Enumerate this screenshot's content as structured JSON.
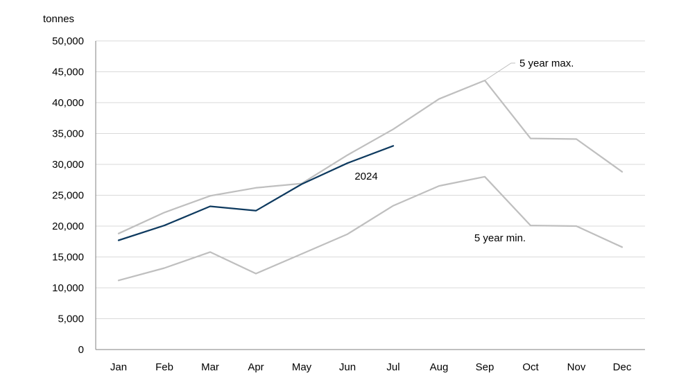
{
  "chart_data": {
    "type": "line",
    "title": "",
    "xlabel": "",
    "ylabel": "tonnes",
    "categories": [
      "Jan",
      "Feb",
      "Mar",
      "Apr",
      "May",
      "Jun",
      "Jul",
      "Aug",
      "Sep",
      "Oct",
      "Nov",
      "Dec"
    ],
    "ylim": [
      0,
      50000
    ],
    "yticks": [
      0,
      5000,
      10000,
      15000,
      20000,
      25000,
      30000,
      35000,
      40000,
      45000,
      50000
    ],
    "ytick_labels": [
      "0",
      "5,000",
      "10,000",
      "15,000",
      "20,000",
      "25,000",
      "30,000",
      "35,000",
      "40,000",
      "45,000",
      "50,000"
    ],
    "grid": true,
    "legend": "none",
    "series": [
      {
        "name": "5 year max.",
        "color": "#bfbfbf",
        "values": [
          18800,
          22200,
          24900,
          26200,
          26900,
          31500,
          35700,
          40600,
          43600,
          34200,
          34100,
          28800
        ]
      },
      {
        "name": "5 year min.",
        "color": "#bfbfbf",
        "values": [
          11200,
          13200,
          15800,
          12300,
          15500,
          18700,
          23300,
          26500,
          28000,
          20100,
          20000,
          16600
        ]
      },
      {
        "name": "2024",
        "color": "#0e3a5f",
        "values": [
          17700,
          20100,
          23200,
          22500,
          26800,
          30200,
          33000,
          null,
          null,
          null,
          null,
          null
        ]
      }
    ]
  }
}
